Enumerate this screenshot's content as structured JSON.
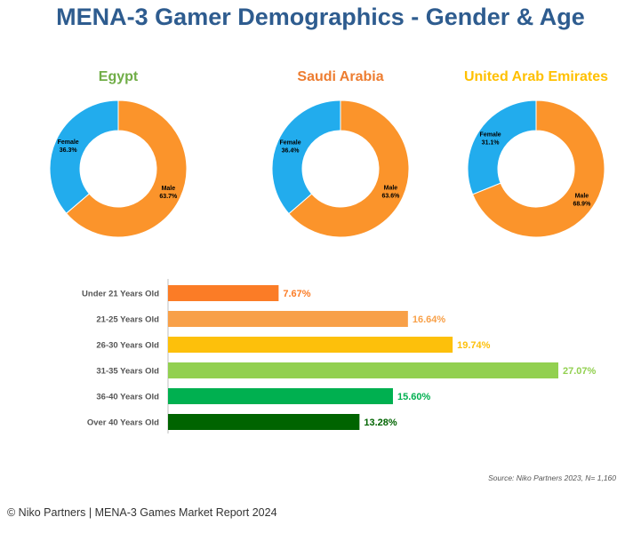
{
  "title": "MENA-3 Gamer Demographics - Gender & Age",
  "source": "Source: Niko Partners 2023, N= 1,160",
  "footer": "© Niko Partners | MENA-3 Games Market Report 2024",
  "chart_data": [
    {
      "type": "pie",
      "title": "Egypt",
      "title_color": "#70ad47",
      "slices": [
        {
          "label": "Male",
          "value": 63.7,
          "display": "63.7%",
          "color": "#fb942b"
        },
        {
          "label": "Female",
          "value": 36.3,
          "display": "36.3%",
          "color": "#22aced"
        }
      ]
    },
    {
      "type": "pie",
      "title": "Saudi Arabia",
      "title_color": "#ed7d31",
      "slices": [
        {
          "label": "Male",
          "value": 63.6,
          "display": "63.6%",
          "color": "#fb942b"
        },
        {
          "label": "Female",
          "value": 36.4,
          "display": "36.4%",
          "color": "#22aced"
        }
      ]
    },
    {
      "type": "pie",
      "title": "United Arab Emirates",
      "title_color": "#ffc000",
      "slices": [
        {
          "label": "Male",
          "value": 68.9,
          "display": "68.9%",
          "color": "#fb942b"
        },
        {
          "label": "Female",
          "value": 31.1,
          "display": "31.1%",
          "color": "#22aced"
        }
      ]
    },
    {
      "type": "bar",
      "orientation": "horizontal",
      "categories": [
        "Under 21 Years Old",
        "21-25 Years Old",
        "26-30 Years Old",
        "31-35 Years Old",
        "36-40 Years Old",
        "Over 40 Years Old"
      ],
      "values": [
        7.67,
        16.64,
        19.74,
        27.07,
        15.6,
        13.28
      ],
      "value_labels": [
        "7.67%",
        "16.64%",
        "19.74%",
        "27.07%",
        "15.60%",
        "13.28%"
      ],
      "colors": [
        "#fb7c26",
        "#f8a048",
        "#fdc00b",
        "#92d050",
        "#00b050",
        "#006400"
      ],
      "label_colors": [
        "#fb7c26",
        "#f8a048",
        "#fdc00b",
        "#92d050",
        "#00b050",
        "#006400"
      ],
      "xlim": [
        0,
        27.07
      ],
      "grid": false,
      "legend": "none"
    }
  ]
}
